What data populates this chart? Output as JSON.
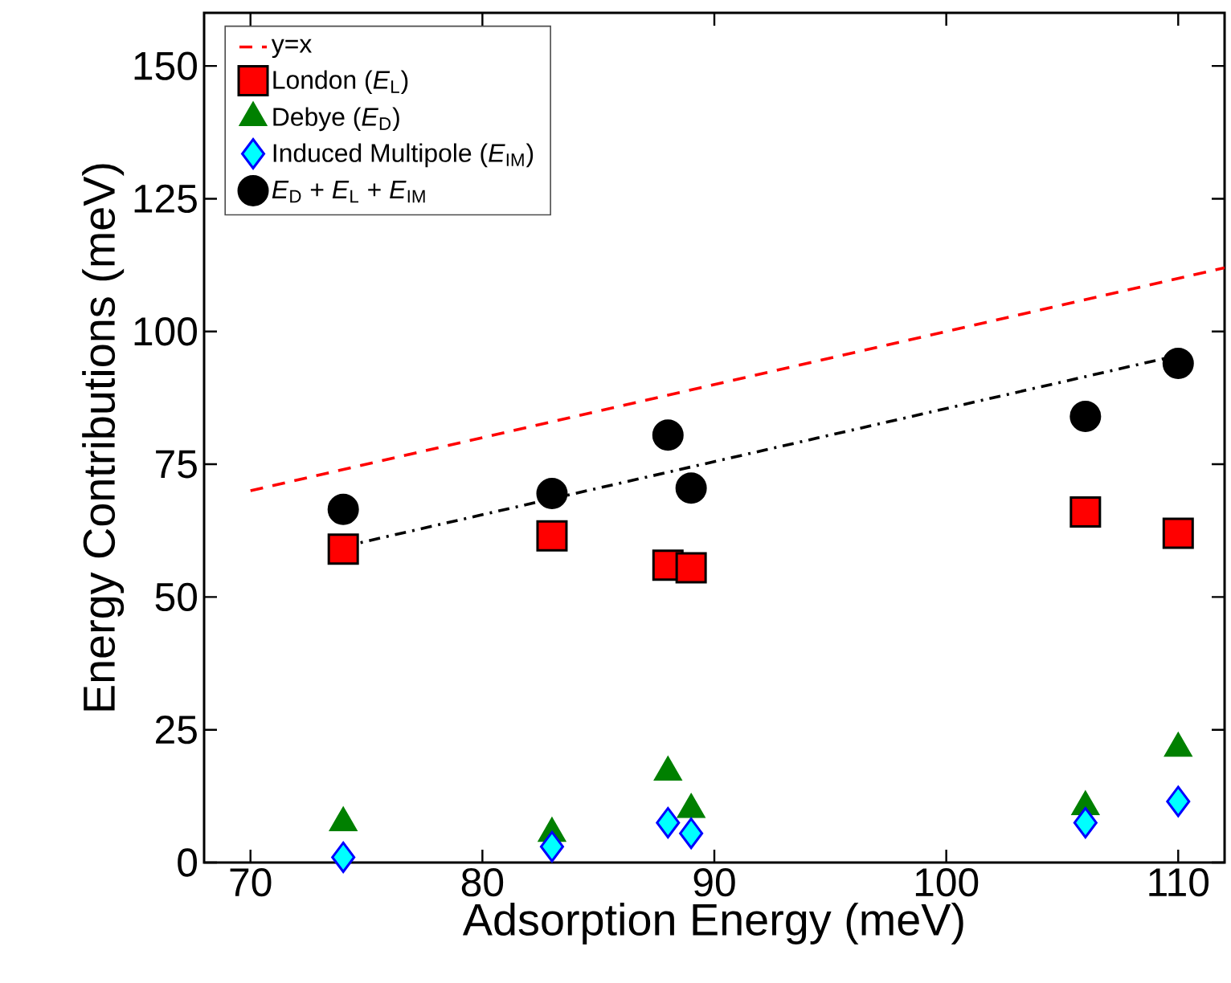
{
  "chart_data": {
    "type": "scatter",
    "xlabel": "Adsorption Energy (meV)",
    "ylabel": "Energy Contributions (meV)",
    "xlim": [
      68,
      112
    ],
    "ylim": [
      0,
      160
    ],
    "xticks": [
      70,
      80,
      90,
      100,
      110
    ],
    "yticks": [
      0,
      25,
      50,
      75,
      100,
      125,
      150
    ],
    "grid": false,
    "legend": "top left",
    "series": [
      {
        "name": "y=x",
        "type": "line",
        "color": "#ff0000",
        "line_style": "dashed",
        "marker": "none",
        "x": [
          70,
          112
        ],
        "values": [
          70,
          112
        ]
      },
      {
        "name": "London (*E*$_{L}$)",
        "marker": "square",
        "color": "#ff0000",
        "x": [
          74,
          83,
          88,
          89,
          106,
          110
        ],
        "values": [
          59,
          61.5,
          56,
          55.5,
          66,
          62
        ]
      },
      {
        "name": "Debye (*E*$_{D}$)",
        "marker": "triangle",
        "color": "#008000",
        "x": [
          74,
          83,
          88,
          89,
          106,
          110
        ],
        "values": [
          7.5,
          5.5,
          17,
          10,
          10.5,
          21.5
        ]
      },
      {
        "name": "Induced Multipole (*E*$_{IM}$)",
        "marker": "diamond",
        "color": "#00ffff",
        "x": [
          74,
          83,
          88,
          89,
          106,
          110
        ],
        "values": [
          1,
          3,
          7.5,
          5.5,
          7.5,
          11.5
        ]
      },
      {
        "name": "*E*$_{D}$ + *E*$_{L}$ + *E*$_{IM}$",
        "marker": "circle",
        "color": "#000000",
        "x": [
          74,
          83,
          88,
          89,
          106,
          110
        ],
        "values": [
          66.5,
          69.5,
          80.5,
          70.5,
          84,
          94
        ]
      },
      {
        "type": "line",
        "color": "#000000",
        "line_style": "dashdot",
        "marker": "none",
        "x": [
          74,
          110
        ],
        "values": [
          59.5,
          95.5
        ]
      }
    ]
  }
}
